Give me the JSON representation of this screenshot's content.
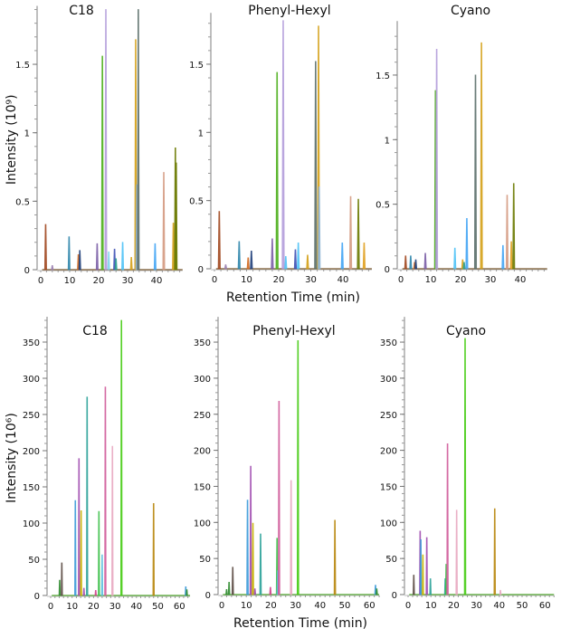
{
  "chart_data": [
    {
      "type": "line",
      "title": "C18",
      "row": "top",
      "xlim": [
        0,
        49
      ],
      "ylim": [
        0,
        1.9
      ],
      "xticks": [
        "0",
        "10",
        "20",
        "30",
        "40"
      ],
      "yticks": [
        "0",
        "0.5",
        "1",
        "1.5"
      ],
      "ylabel": "Intensity (10⁹)",
      "xlabel": "",
      "peaks": [
        [
          1.7,
          0.33,
          "#a0461e"
        ],
        [
          4,
          0.03,
          "#9a7fb0"
        ],
        [
          9.8,
          0.24,
          "#2e86ab"
        ],
        [
          13,
          0.11,
          "#d2691e"
        ],
        [
          13.5,
          0.14,
          "#1f3f7a"
        ],
        [
          19.5,
          0.19,
          "#7b5ea7"
        ],
        [
          21.3,
          1.56,
          "#4caf1a"
        ],
        [
          22.5,
          1.9,
          "#b39ddb"
        ],
        [
          23.5,
          0.13,
          "#7fd3f0"
        ],
        [
          25.5,
          0.15,
          "#3f51b5"
        ],
        [
          26,
          0.08,
          "#2a9d8f"
        ],
        [
          28.3,
          0.2,
          "#4fc3f7"
        ],
        [
          31.3,
          0.09,
          "#d4a017"
        ],
        [
          32.8,
          1.68,
          "#d4a017"
        ],
        [
          33.2,
          0.62,
          "#8fb8de"
        ],
        [
          33.7,
          1.9,
          "#5a6e6a"
        ],
        [
          39.5,
          0.19,
          "#42a5f5"
        ],
        [
          42.5,
          0.71,
          "#d49a80"
        ],
        [
          45.8,
          0.34,
          "#d4a017"
        ],
        [
          46.5,
          0.89,
          "#6b7a00"
        ],
        [
          46.8,
          0.78,
          "#6b7a00"
        ]
      ]
    },
    {
      "type": "line",
      "title": "Phenyl-Hexyl",
      "row": "top",
      "xlim": [
        0,
        49
      ],
      "ylim": [
        0,
        1.85
      ],
      "xticks": [
        "0",
        "10",
        "20",
        "30",
        "40"
      ],
      "yticks": [
        "0",
        "0.5",
        "1",
        "1.5"
      ],
      "ylabel": "",
      "xlabel": "Retention Time (min)",
      "peaks": [
        [
          1.5,
          0.42,
          "#a0461e"
        ],
        [
          3.5,
          0.03,
          "#9a7fb0"
        ],
        [
          7.7,
          0.2,
          "#2e86ab"
        ],
        [
          10.5,
          0.08,
          "#d2691e"
        ],
        [
          11.5,
          0.13,
          "#1f3f7a"
        ],
        [
          18,
          0.22,
          "#7b5ea7"
        ],
        [
          19.5,
          1.44,
          "#4caf1a"
        ],
        [
          21.4,
          1.82,
          "#b39ddb"
        ],
        [
          22.2,
          0.09,
          "#4fc3f7"
        ],
        [
          25.2,
          0.14,
          "#3f51b5"
        ],
        [
          26.1,
          0.19,
          "#4fc3f7"
        ],
        [
          29,
          0.1,
          "#d4a017"
        ],
        [
          31.5,
          1.52,
          "#5a6e6a"
        ],
        [
          32.4,
          1.78,
          "#d4a017"
        ],
        [
          32.6,
          0.6,
          "#8fb8de"
        ],
        [
          39.8,
          0.19,
          "#42a5f5"
        ],
        [
          42.4,
          0.53,
          "#d49a80"
        ],
        [
          44.8,
          0.51,
          "#6b7a00"
        ],
        [
          46.6,
          0.19,
          "#e0a020"
        ]
      ]
    },
    {
      "type": "line",
      "title": "Cyano",
      "row": "top",
      "xlim": [
        0,
        49
      ],
      "ylim": [
        0,
        1.89
      ],
      "xticks": [
        "0",
        "10",
        "20",
        "30",
        "40"
      ],
      "yticks": [
        "0",
        "0.5",
        "1",
        "1.5"
      ],
      "ylabel": "",
      "xlabel": "",
      "peaks": [
        [
          1.6,
          0.1,
          "#a0461e"
        ],
        [
          3.3,
          0.1,
          "#2e86ab"
        ],
        [
          4.6,
          0.05,
          "#d2691e"
        ],
        [
          5,
          0.07,
          "#1f3f7a"
        ],
        [
          8.2,
          0.12,
          "#7b5ea7"
        ],
        [
          11.6,
          1.38,
          "#4caf1a"
        ],
        [
          12,
          1.7,
          "#b39ddb"
        ],
        [
          18.1,
          0.16,
          "#4fc3f7"
        ],
        [
          20.7,
          0.07,
          "#d4a017"
        ],
        [
          21.2,
          0.05,
          "#2a9d8f"
        ],
        [
          22.1,
          0.39,
          "#42a5f5"
        ],
        [
          25,
          1.5,
          "#5a6e6a"
        ],
        [
          27,
          1.75,
          "#d4a017"
        ],
        [
          34.2,
          0.18,
          "#42a5f5"
        ],
        [
          35.6,
          0.57,
          "#d49a80"
        ],
        [
          37,
          0.21,
          "#e0a020"
        ],
        [
          37.8,
          0.66,
          "#6b7a00"
        ]
      ]
    },
    {
      "type": "line",
      "title": "C18",
      "row": "bottom",
      "xlim": [
        0,
        65
      ],
      "ylim": [
        0,
        380
      ],
      "xticks": [
        "0",
        "10",
        "20",
        "30",
        "40",
        "50",
        "60"
      ],
      "yticks": [
        "0",
        "50",
        "100",
        "150",
        "200",
        "250",
        "300",
        "350"
      ],
      "ylabel": "Intensity (10⁶)",
      "xlabel": "",
      "peaks": [
        [
          4.2,
          21,
          "#2e8b2e"
        ],
        [
          5.2,
          45,
          "#5a4a42"
        ],
        [
          11.5,
          131,
          "#3a9ad9"
        ],
        [
          13.2,
          189,
          "#a04cb0"
        ],
        [
          14.2,
          117,
          "#c8b400"
        ],
        [
          15.5,
          10,
          "#a04cb0"
        ],
        [
          17,
          274,
          "#2aa198"
        ],
        [
          21,
          7,
          "#d0408a"
        ],
        [
          22.5,
          116,
          "#3cc04a"
        ],
        [
          24,
          56,
          "#5bc0de"
        ],
        [
          25.5,
          288,
          "#d05a9a"
        ],
        [
          28.8,
          206,
          "#e8a8c0"
        ],
        [
          33,
          380,
          "#44cc11"
        ],
        [
          48,
          127,
          "#b8860b"
        ],
        [
          63,
          12,
          "#3a9ad9"
        ],
        [
          63.5,
          8,
          "#2e8b2e"
        ]
      ]
    },
    {
      "type": "line",
      "title": "Phenyl-Hexyl",
      "row": "bottom",
      "xlim": [
        0,
        64
      ],
      "ylim": [
        0,
        380
      ],
      "xticks": [
        "0",
        "10",
        "20",
        "30",
        "40",
        "50",
        "60"
      ],
      "yticks": [
        "0",
        "50",
        "100",
        "150",
        "200",
        "250",
        "300",
        "350"
      ],
      "ylabel": "",
      "xlabel": "Retention Time (min)",
      "peaks": [
        [
          2,
          7,
          "#2e8b2e"
        ],
        [
          3,
          17,
          "#2e8b2e"
        ],
        [
          4.5,
          38,
          "#5a4a42"
        ],
        [
          10.5,
          131,
          "#3a9ad9"
        ],
        [
          11.8,
          178,
          "#a04cb0"
        ],
        [
          12.7,
          99,
          "#c8b400"
        ],
        [
          13.5,
          8,
          "#a04cb0"
        ],
        [
          15.8,
          84,
          "#2aa198"
        ],
        [
          19.8,
          10,
          "#d0408a"
        ],
        [
          22.5,
          78,
          "#3cc04a"
        ],
        [
          22.8,
          33,
          "#5bc0de"
        ],
        [
          23.3,
          268,
          "#d05a9a"
        ],
        [
          28.2,
          158,
          "#e8a8c0"
        ],
        [
          31,
          352,
          "#44cc11"
        ],
        [
          46,
          103,
          "#b8860b"
        ],
        [
          62.5,
          13,
          "#3a9ad9"
        ],
        [
          63,
          8,
          "#2e8b2e"
        ]
      ]
    },
    {
      "type": "line",
      "title": "Cyano",
      "row": "bottom",
      "xlim": [
        0,
        64
      ],
      "ylim": [
        0,
        380
      ],
      "xticks": [
        "0",
        "10",
        "20",
        "30",
        "40",
        "50",
        "60"
      ],
      "yticks": [
        "0",
        "50",
        "100",
        "150",
        "200",
        "250",
        "300",
        "350"
      ],
      "ylabel": "",
      "xlabel": "",
      "peaks": [
        [
          2.5,
          27,
          "#5a4a42"
        ],
        [
          5.3,
          88,
          "#a04cb0"
        ],
        [
          5.6,
          76,
          "#3a9ad9"
        ],
        [
          6.5,
          55,
          "#c8b400"
        ],
        [
          8.2,
          79,
          "#a04cb0"
        ],
        [
          9.8,
          22,
          "#2aa198"
        ],
        [
          16.3,
          22,
          "#2aa198"
        ],
        [
          16.7,
          42,
          "#3cc04a"
        ],
        [
          17.3,
          209,
          "#d05a9a"
        ],
        [
          21.3,
          117,
          "#e8a8c0"
        ],
        [
          25,
          355,
          "#44cc11"
        ],
        [
          38,
          119,
          "#b8860b"
        ],
        [
          40.5,
          6,
          "#e8a8c0"
        ]
      ]
    }
  ]
}
